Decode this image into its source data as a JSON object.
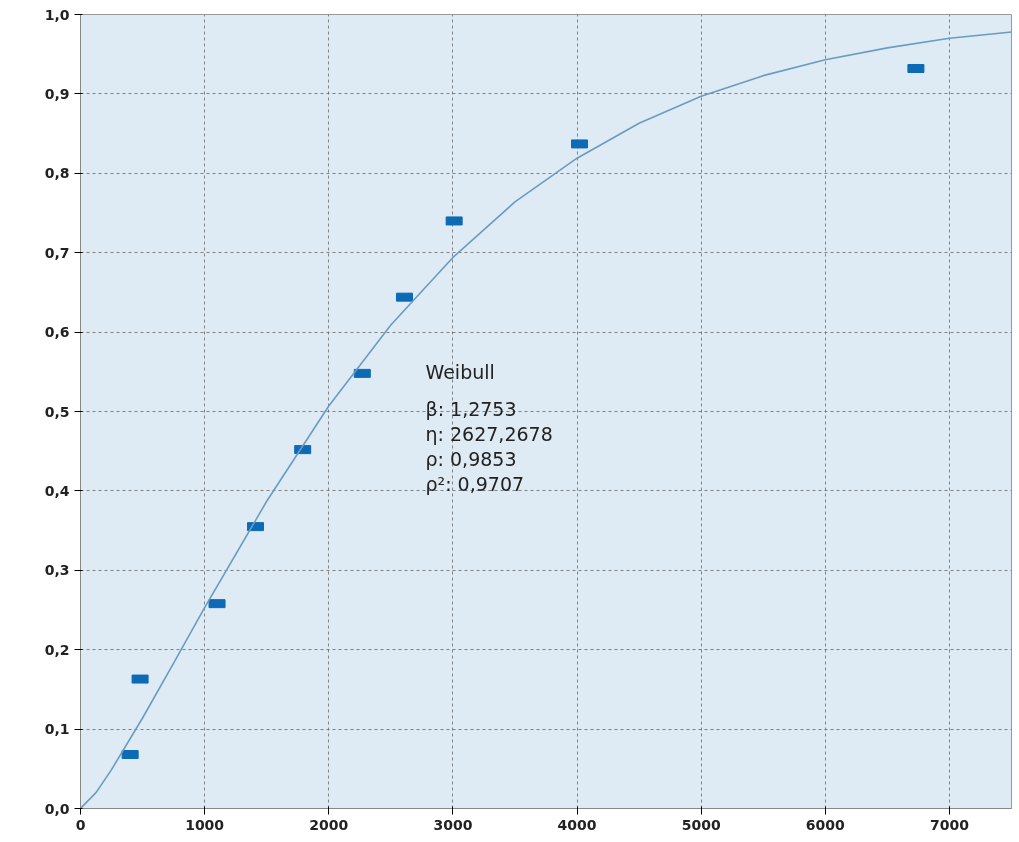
{
  "chart_data": {
    "type": "scatter",
    "xlim": [
      0,
      7500
    ],
    "ylim": [
      0,
      1.0
    ],
    "xticks": [
      0,
      1000,
      2000,
      3000,
      4000,
      5000,
      6000,
      7000
    ],
    "yticks": [
      {
        "value": 0,
        "label": "0,0"
      },
      {
        "value": 0.1,
        "label": "0,1"
      },
      {
        "value": 0.2,
        "label": "0,2"
      },
      {
        "value": 0.3,
        "label": "0,3"
      },
      {
        "value": 0.4,
        "label": "0,4"
      },
      {
        "value": 0.5,
        "label": "0,5"
      },
      {
        "value": 0.6,
        "label": "0,6"
      },
      {
        "value": 0.7,
        "label": "0,7"
      },
      {
        "value": 0.8,
        "label": "0,8"
      },
      {
        "value": 0.9,
        "label": "0,9"
      },
      {
        "value": 1.0,
        "label": "1,0"
      }
    ],
    "grid": true,
    "series": [
      {
        "marker": "square",
        "color": "#0d6ab5",
        "x": [
          400,
          480,
          1100,
          1410,
          1790,
          2270,
          2610,
          3010,
          4020,
          6730
        ],
        "values": [
          0.068,
          0.163,
          0.258,
          0.355,
          0.452,
          0.548,
          0.644,
          0.74,
          0.837,
          0.932
        ]
      },
      {
        "type": "line",
        "marker": "none",
        "color": "#6a9cc0",
        "x": [
          0,
          125,
          250,
          500,
          750,
          1000,
          1500,
          2000,
          2500,
          3000,
          3500,
          4000,
          4500,
          5000,
          5500,
          6000,
          6500,
          7000,
          7500
        ],
        "values": [
          0,
          0.02,
          0.049,
          0.114,
          0.183,
          0.253,
          0.387,
          0.507,
          0.609,
          0.694,
          0.764,
          0.819,
          0.863,
          0.897,
          0.923,
          0.943,
          0.958,
          0.97,
          0.978
        ]
      }
    ],
    "annotations": [
      "Weibull",
      "β: 1,2753",
      "η: 2627,2678",
      "ρ: 0,9853",
      "ρ²: 0,9707"
    ]
  }
}
